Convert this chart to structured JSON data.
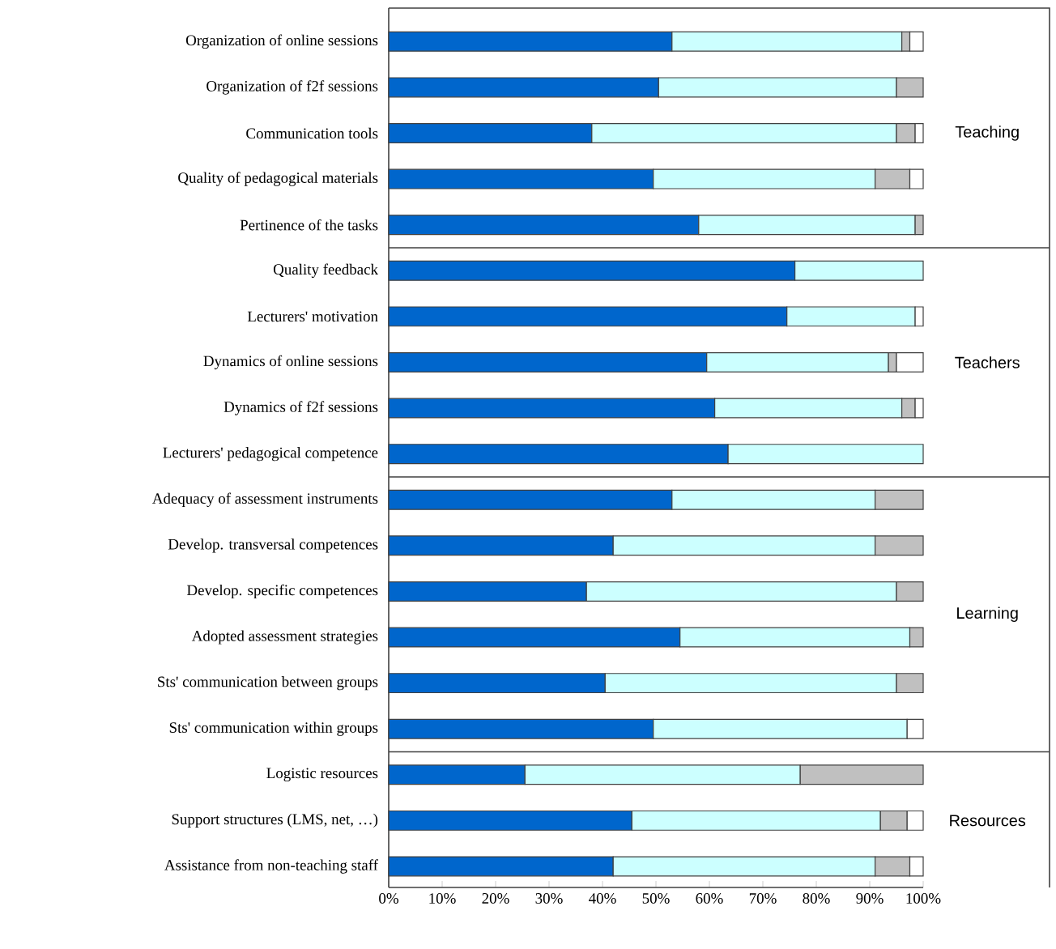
{
  "chart_data": {
    "type": "bar",
    "orientation": "horizontal",
    "stacked": true,
    "categories": [
      "Organization of online sessions",
      "Organization of f2f sessions",
      "Communication tools",
      "Quality of pedagogical materials",
      "Pertinence of the tasks",
      "Quality feedback",
      "Lecturers' motivation",
      "Dynamics of online sessions",
      "Dynamics of f2f sessions",
      "Lecturers' pedagogical competence",
      "Adequacy of assessment instruments",
      "Develop. transversal competences",
      "Develop. specific competences",
      "Adopted assessment strategies",
      "Sts' communication between groups",
      "Sts' communication within groups",
      "Logistic resources",
      "Support structures (LMS, net, …)",
      "Assistance from non-teaching staff"
    ],
    "series": [
      {
        "color": "#0066cc",
        "values": [
          53,
          50.5,
          38,
          49.5,
          58,
          76,
          74.5,
          59.5,
          61,
          63.5,
          53,
          42,
          37,
          54.5,
          40.5,
          49.5,
          25.5,
          45.5,
          42
        ]
      },
      {
        "color": "#ccffff",
        "values": [
          43,
          44.5,
          57,
          41.5,
          40.5,
          24,
          24,
          34,
          35,
          36.5,
          38,
          49,
          58,
          43,
          54.5,
          47.5,
          51.5,
          46.5,
          49
        ]
      },
      {
        "color": "#c0c0c0",
        "values": [
          1.5,
          5,
          3.5,
          6.5,
          1.5,
          null,
          null,
          1.5,
          2.5,
          null,
          9,
          9,
          5,
          2.5,
          5,
          null,
          23,
          5,
          6.5
        ]
      },
      {
        "color": "#ffffff",
        "values": [
          2.5,
          null,
          1.5,
          2.5,
          null,
          null,
          1.5,
          5,
          1.5,
          null,
          null,
          null,
          null,
          null,
          null,
          3,
          null,
          3,
          2.5
        ]
      }
    ],
    "xlim": [
      0,
      100
    ],
    "xticks": [
      {
        "value": 0,
        "label": "0%"
      },
      {
        "value": 10,
        "label": "10%"
      },
      {
        "value": 20,
        "label": "20%"
      },
      {
        "value": 30,
        "label": "30%"
      },
      {
        "value": 40,
        "label": "40%"
      },
      {
        "value": 50,
        "label": "50%"
      },
      {
        "value": 60,
        "label": "60%"
      },
      {
        "value": 70,
        "label": "70%"
      },
      {
        "value": 80,
        "label": "80%"
      },
      {
        "value": 90,
        "label": "90%"
      },
      {
        "value": 100,
        "label": "100%"
      }
    ],
    "annotations": [
      "Teaching",
      "Teachers",
      "Learning",
      "Resources"
    ]
  }
}
